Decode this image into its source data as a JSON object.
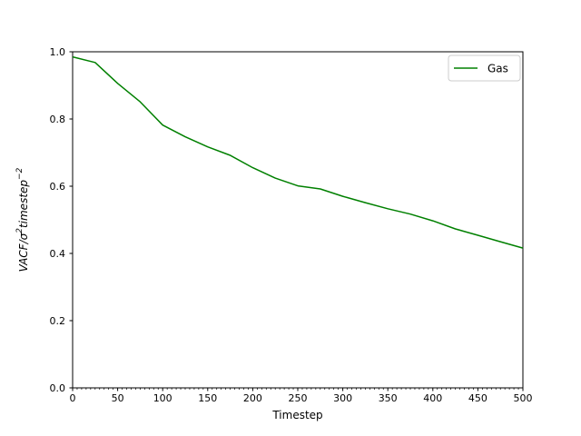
{
  "chart_data": {
    "type": "line",
    "title": "",
    "xlabel": "Timestep",
    "ylabel": "VACF/σ²timestep⁻²",
    "ylabel_parts": [
      {
        "text": "VACF/σ",
        "sup": false
      },
      {
        "text": "2",
        "sup": true
      },
      {
        "text": "timestep",
        "sup": false
      },
      {
        "text": "−2",
        "sup": true
      }
    ],
    "xlim": [
      0,
      500
    ],
    "ylim": [
      0.0,
      1.0
    ],
    "x_tick_labels": [
      "0",
      "50",
      "100",
      "150",
      "200",
      "250",
      "300",
      "350",
      "400",
      "450",
      "500"
    ],
    "x_ticks": [
      0,
      50,
      100,
      150,
      200,
      250,
      300,
      350,
      400,
      450,
      500
    ],
    "x_minor_tick_step": 5,
    "y_tick_labels": [
      "0.0",
      "0.2",
      "0.4",
      "0.6",
      "0.8",
      "1.0"
    ],
    "y_ticks": [
      0.0,
      0.2,
      0.4,
      0.6,
      0.8,
      1.0
    ],
    "grid": false,
    "legend": {
      "position": "upper right",
      "entries": [
        {
          "label": "Gas",
          "color": "#008000"
        }
      ]
    },
    "series": [
      {
        "name": "Gas",
        "color": "#008000",
        "x": [
          0,
          25,
          50,
          75,
          100,
          125,
          150,
          175,
          200,
          225,
          250,
          275,
          300,
          325,
          350,
          375,
          400,
          425,
          450,
          475,
          500
        ],
        "y": [
          0.985,
          0.968,
          0.906,
          0.851,
          0.782,
          0.747,
          0.717,
          0.692,
          0.655,
          0.624,
          0.601,
          0.592,
          0.57,
          0.551,
          0.533,
          0.517,
          0.497,
          0.473,
          0.454,
          0.435,
          0.416
        ]
      }
    ]
  }
}
